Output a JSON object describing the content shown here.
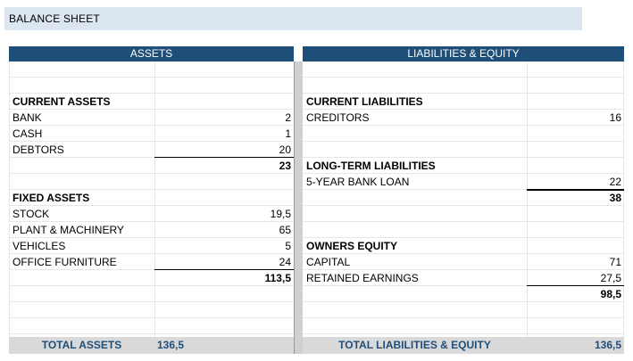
{
  "title": "BALANCE SHEET",
  "headers": {
    "assets": "ASSETS",
    "liabilities": "LIABILITIES & EQUITY"
  },
  "assets": {
    "current_heading": "CURRENT ASSETS",
    "bank_label": "BANK",
    "bank_value": "2",
    "cash_label": "CASH",
    "cash_value": "1",
    "debtors_label": "DEBTORS",
    "debtors_value": "20",
    "current_total": "23",
    "fixed_heading": "FIXED ASSETS",
    "stock_label": "STOCK",
    "stock_value": "19,5",
    "plant_label": "PLANT & MACHINERY",
    "plant_value": "65",
    "vehicles_label": "VEHICLES",
    "vehicles_value": "5",
    "furniture_label": "OFFICE FURNITURE",
    "furniture_value": "24",
    "fixed_total": "113,5"
  },
  "liabilities": {
    "current_heading": "CURRENT LIABILITIES",
    "creditors_label": "CREDITORS",
    "creditors_value": "16",
    "longterm_heading": "LONG-TERM LIABILITIES",
    "loan_label": "5-YEAR BANK LOAN",
    "loan_value": "22",
    "liabilities_total": "38",
    "equity_heading": "OWNERS EQUITY",
    "capital_label": "CAPITAL",
    "capital_value": "71",
    "retained_label": "RETAINED EARNINGS",
    "retained_value": "27,5",
    "equity_total": "98,5"
  },
  "totals": {
    "assets_label": "TOTAL ASSETS",
    "assets_value": "136,5",
    "liabilities_label": "TOTAL LIABILITIES & EQUITY",
    "liabilities_value": "136,5"
  },
  "colors": {
    "header_bg": "#1f4e79",
    "title_bg": "#dce6f1",
    "footer_bg": "#d9d9d9",
    "footer_text": "#1f4e79"
  }
}
